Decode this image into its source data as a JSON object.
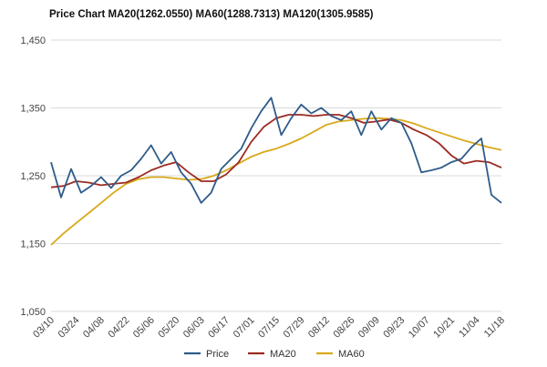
{
  "chart_data": {
    "type": "line",
    "title": "Price Chart MA20(1262.0550) MA60(1288.7313) MA120(1305.9585)",
    "xlabel": "",
    "ylabel": "",
    "ylim": [
      1050,
      1450
    ],
    "yticks": [
      "1,050",
      "1,150",
      "1,250",
      "1,350",
      "1,450"
    ],
    "ytick_values": [
      1050,
      1150,
      1250,
      1350,
      1450
    ],
    "categories": [
      "03/10",
      "03/24",
      "04/08",
      "04/22",
      "05/06",
      "05/20",
      "06/03",
      "06/17",
      "07/01",
      "07/15",
      "07/29",
      "08/12",
      "08/26",
      "09/09",
      "09/23",
      "10/07",
      "10/21",
      "11/04",
      "11/18"
    ],
    "grid": true,
    "legend_position": "bottom",
    "series": [
      {
        "name": "Price",
        "color": "#2e5c8a",
        "x": [
          0,
          0.4,
          0.8,
          1.2,
          1.6,
          2.0,
          2.4,
          2.8,
          3.2,
          3.6,
          4.0,
          4.4,
          4.8,
          5.2,
          5.6,
          6.0,
          6.4,
          6.8,
          7.2,
          7.6,
          8.0,
          8.4,
          8.8,
          9.2,
          9.6,
          10.0,
          10.4,
          10.8,
          11.2,
          11.6,
          12.0,
          12.4,
          12.8,
          13.2,
          13.6,
          14.0,
          14.4,
          14.8,
          15.2,
          15.6,
          16.0,
          16.4,
          16.8,
          17.2,
          17.6,
          18.0
        ],
        "values": [
          1270,
          1218,
          1260,
          1225,
          1235,
          1248,
          1232,
          1250,
          1258,
          1275,
          1295,
          1268,
          1285,
          1255,
          1238,
          1210,
          1225,
          1260,
          1275,
          1290,
          1320,
          1345,
          1365,
          1310,
          1335,
          1355,
          1342,
          1350,
          1338,
          1332,
          1345,
          1310,
          1345,
          1318,
          1335,
          1328,
          1298,
          1255,
          1258,
          1262,
          1270,
          1275,
          1292,
          1305,
          1222,
          1210
        ]
      },
      {
        "name": "MA20",
        "color": "#9c2b22",
        "x": [
          0,
          0.5,
          1.0,
          1.5,
          2.0,
          2.5,
          3.0,
          3.5,
          4.0,
          4.5,
          5.0,
          5.5,
          6.0,
          6.5,
          7.0,
          7.5,
          8.0,
          8.5,
          9.0,
          9.5,
          10.0,
          10.5,
          11.0,
          11.5,
          12.0,
          12.5,
          13.0,
          13.5,
          14.0,
          14.5,
          15.0,
          15.5,
          16.0,
          16.5,
          17.0,
          17.5,
          18.0
        ],
        "values": [
          1233,
          1235,
          1242,
          1240,
          1236,
          1238,
          1240,
          1248,
          1258,
          1265,
          1270,
          1255,
          1242,
          1242,
          1252,
          1270,
          1300,
          1322,
          1335,
          1340,
          1340,
          1338,
          1340,
          1340,
          1335,
          1328,
          1330,
          1333,
          1328,
          1318,
          1310,
          1298,
          1280,
          1268,
          1272,
          1270,
          1262
        ]
      },
      {
        "name": "MA60",
        "color": "#d9a91b",
        "x": [
          0,
          0.5,
          1.0,
          1.5,
          2.0,
          2.5,
          3.0,
          3.5,
          4.0,
          4.5,
          5.0,
          5.5,
          6.0,
          6.5,
          7.0,
          7.5,
          8.0,
          8.5,
          9.0,
          9.5,
          10.0,
          10.5,
          11.0,
          11.5,
          12.0,
          12.5,
          13.0,
          13.5,
          14.0,
          14.5,
          15.0,
          15.5,
          16.0,
          16.5,
          17.0,
          17.5,
          18.0
        ],
        "values": [
          1148,
          1165,
          1180,
          1195,
          1210,
          1225,
          1238,
          1245,
          1248,
          1248,
          1246,
          1244,
          1245,
          1250,
          1258,
          1268,
          1278,
          1285,
          1290,
          1297,
          1305,
          1315,
          1325,
          1330,
          1332,
          1334,
          1335,
          1334,
          1332,
          1327,
          1320,
          1314,
          1308,
          1302,
          1297,
          1292,
          1288
        ]
      }
    ]
  }
}
